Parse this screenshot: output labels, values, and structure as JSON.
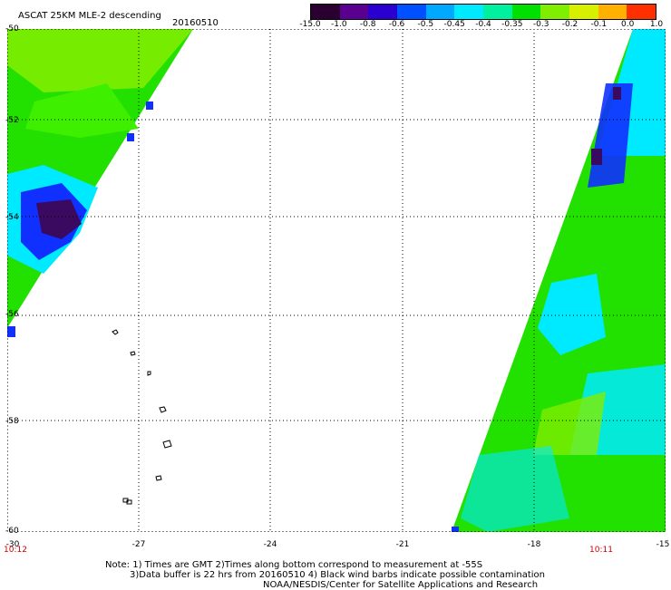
{
  "header": {
    "title": "ASCAT 25KM MLE-2 descending",
    "date": "20160510"
  },
  "legend": {
    "labels": [
      "-15.0",
      "-1.0",
      "-0.8",
      "-0.6",
      "-0.5",
      "-0.45",
      "-0.4",
      "-0.35",
      "-0.3",
      "-0.2",
      "-0.1",
      "0.0",
      "1.0"
    ],
    "colors": [
      "#2a0030",
      "#5a0090",
      "#2a00d0",
      "#0050ff",
      "#00a8ff",
      "#00eaff",
      "#00f0a0",
      "#00e000",
      "#80ee00",
      "#d8f000",
      "#ffb000",
      "#ff3000"
    ]
  },
  "axes": {
    "y_labels": [
      "-50",
      "-52",
      "-54",
      "-56",
      "-58",
      "-60"
    ],
    "x_labels": [
      "-30",
      "-27",
      "-24",
      "-21",
      "-18",
      "-15"
    ],
    "time_left": "10:12",
    "time_right": "10:11"
  },
  "notes": {
    "line1": "Note: 1) Times are GMT 2)Times along bottom correspond to measurement at -55S",
    "line2": "3)Data buffer is 22 hrs from 20160510 4) Black wind barbs indicate possible contamination",
    "line3": "NOAA/NESDIS/Center for Satellite Applications and Research"
  },
  "colors": {
    "grid_dots": "#000000",
    "time_text": "#cc0000",
    "green": "#22e000",
    "lime": "#80ee00",
    "cyan": "#00eaff",
    "blue": "#1030ff",
    "purple": "#3a0a60"
  }
}
